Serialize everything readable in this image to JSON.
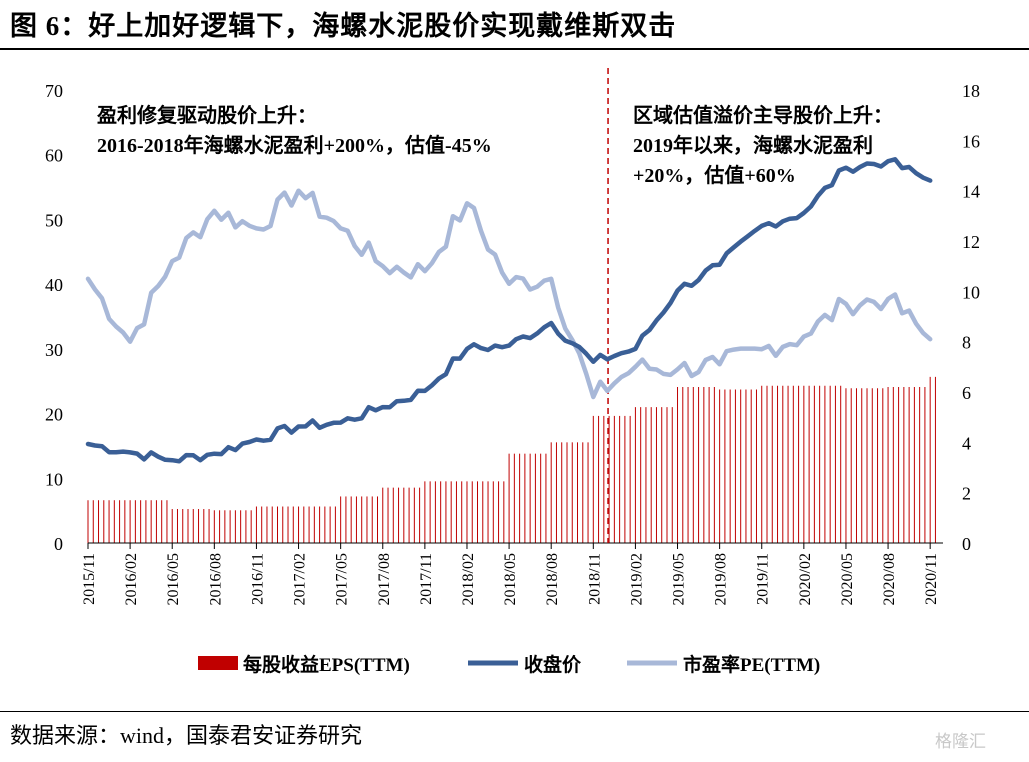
{
  "figure": {
    "title": "图 6：好上加好逻辑下，海螺水泥股价实现戴维斯双击",
    "source": "数据来源：wind，国泰君安证券研究",
    "watermark": "格隆汇"
  },
  "colors": {
    "eps": "#c00000",
    "price": "#3a5f96",
    "pe": "#a8b8d8",
    "divider": "#c00000"
  },
  "chart_data": {
    "type": "bar+line",
    "x": [
      "2015/11",
      "2016/02",
      "2016/05",
      "2016/08",
      "2016/11",
      "2017/02",
      "2017/05",
      "2017/08",
      "2017/11",
      "2018/02",
      "2018/05",
      "2018/08",
      "2018/11",
      "2019/02",
      "2019/05",
      "2019/08",
      "2019/11",
      "2020/02",
      "2020/05",
      "2020/08",
      "2020/11"
    ],
    "y_left": {
      "range": [
        0,
        70
      ],
      "ticks": [
        0,
        10,
        20,
        30,
        40,
        50,
        60,
        70
      ]
    },
    "y_right": {
      "range": [
        0,
        18
      ],
      "ticks": [
        0,
        2,
        4,
        6,
        8,
        10,
        12,
        14,
        16,
        18
      ]
    },
    "series": [
      {
        "name": "每股收益EPS(TTM)",
        "axis": "right",
        "type": "bar",
        "values": [
          1.7,
          1.7,
          1.35,
          1.3,
          1.45,
          1.45,
          1.85,
          2.2,
          2.45,
          2.45,
          3.55,
          4.0,
          5.05,
          5.4,
          6.2,
          6.1,
          6.25,
          6.25,
          6.15,
          6.2,
          6.6
        ]
      },
      {
        "name": "收盘价",
        "axis": "left",
        "type": "line",
        "values": [
          15.3,
          14,
          12.8,
          13.8,
          16.0,
          18.0,
          18.6,
          21.0,
          23.5,
          30.0,
          30.5,
          34.0,
          28.0,
          30.0,
          39.0,
          43.0,
          49.0,
          51.0,
          58.0,
          59.0,
          56.0
        ]
      },
      {
        "name": "市盈率PE(TTM)",
        "axis": "right",
        "type": "line",
        "values": [
          10.5,
          8.0,
          11.2,
          13.2,
          12.5,
          14.0,
          12.5,
          11.0,
          10.8,
          13.5,
          10.3,
          10.5,
          5.8,
          7.0,
          6.9,
          7.1,
          7.7,
          8.2,
          9.5,
          9.7,
          8.1
        ]
      }
    ],
    "annotations": [
      {
        "lines": [
          "盈利修复驱动股价上升：",
          "2016-2018年海螺水泥盈利+200%，估值-45%"
        ]
      },
      {
        "lines": [
          "区域估值溢价主导股价上升：",
          "2019年以来，海螺水泥盈利",
          "+20%，估值+60%"
        ]
      }
    ],
    "legend_position": "bottom"
  }
}
